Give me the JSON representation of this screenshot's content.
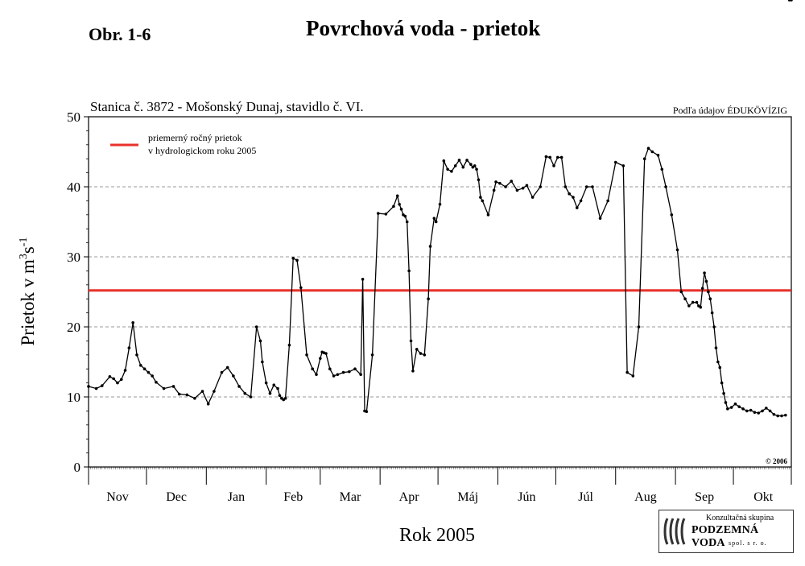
{
  "figure_label": "Obr. 1-6",
  "figure_title": "Povrchová voda - prietok",
  "chart_data": {
    "type": "line",
    "title": "Stanica č. 3872 - Mošonský Dunaj, stavidlo č. VI.",
    "source_note": "Podľa údajov ÉDUKÖVÍZIG",
    "copyright": "© 2006",
    "ylabel_main": "Prietok v m",
    "ylabel_sup1": "3",
    "ylabel_mid": "s",
    "ylabel_sup2": "-1",
    "xlabel": "Rok 2005",
    "ylim": [
      0,
      50
    ],
    "yticks": [
      0,
      10,
      20,
      30,
      40,
      50
    ],
    "ytick_labels": [
      "0",
      "10",
      "20",
      "30",
      "40",
      "50"
    ],
    "grid_y": [
      10,
      20,
      30,
      40
    ],
    "months": [
      "Nov",
      "Dec",
      "Jan",
      "Feb",
      "Mar",
      "Apr",
      "Máj",
      "Jún",
      "Júl",
      "Aug",
      "Sep",
      "Okt"
    ],
    "days_in_month": [
      30,
      31,
      31,
      28,
      31,
      30,
      31,
      30,
      31,
      31,
      30,
      31
    ],
    "legend": {
      "line1": "priemerný ročný prietok",
      "line2": "v hydrologickom roku 2005",
      "position": "top-left"
    },
    "mean_annual_flow": 25.2,
    "colors": {
      "series": "#000000",
      "mean_line": "#e8312a",
      "grid": "#777777"
    },
    "series": [
      {
        "day_of_year": [
          1,
          5,
          8,
          12,
          14,
          16,
          18,
          20,
          22,
          24,
          26,
          28,
          30,
          32,
          34,
          36,
          40,
          45,
          48,
          52,
          56,
          60,
          63,
          66,
          70,
          73,
          76,
          79,
          82,
          85,
          88,
          90,
          91,
          93,
          95,
          97,
          99,
          100,
          101,
          102,
          103,
          105,
          107,
          109,
          111,
          114,
          117,
          119,
          121,
          122,
          123,
          124,
          126,
          128,
          130,
          133,
          136,
          139,
          142,
          143,
          144,
          145,
          148,
          151,
          155,
          159,
          161,
          162,
          163,
          164,
          165,
          166,
          167,
          168,
          169,
          171,
          173,
          175,
          177,
          178,
          180,
          181,
          183,
          185,
          187,
          189,
          191,
          193,
          195,
          197,
          199,
          200,
          201,
          202,
          203,
          204,
          205,
          208,
          211,
          212,
          214,
          217,
          220,
          223,
          226,
          228,
          231,
          235,
          238,
          240,
          242,
          244,
          246,
          248,
          250,
          252,
          254,
          256,
          259,
          262,
          266,
          270,
          274,
          278,
          280,
          283,
          286,
          289,
          291,
          293,
          296,
          298,
          300,
          303,
          306,
          308,
          310,
          312,
          314,
          316,
          317,
          318,
          319,
          320,
          321,
          322,
          323,
          324,
          325,
          326,
          327,
          328,
          329,
          330,
          331,
          332,
          334,
          336,
          338,
          340,
          342,
          344,
          346,
          348,
          350,
          352,
          354,
          356,
          358,
          360,
          362,
          364,
          365
        ],
        "values": [
          11.5,
          11.2,
          11.6,
          12.9,
          12.6,
          12.0,
          12.5,
          13.8,
          17.0,
          20.6,
          16.0,
          14.5,
          14.0,
          13.5,
          13.0,
          12.1,
          11.2,
          11.5,
          10.4,
          10.3,
          9.8,
          10.8,
          9.0,
          10.8,
          13.5,
          14.2,
          13.0,
          11.5,
          10.5,
          10.0,
          20.0,
          18.0,
          15.0,
          12.0,
          10.5,
          11.7,
          11.2,
          10.2,
          9.8,
          9.6,
          9.8,
          17.4,
          29.8,
          29.5,
          25.6,
          16.0,
          14.0,
          13.2,
          15.5,
          16.4,
          16.3,
          16.2,
          14.0,
          13.0,
          13.2,
          13.5,
          13.6,
          14.0,
          13.2,
          26.8,
          8.0,
          7.9,
          16.0,
          36.2,
          36.1,
          37.2,
          38.7,
          37.5,
          36.8,
          36.0,
          35.8,
          35.0,
          28.0,
          18.0,
          13.7,
          16.8,
          16.2,
          16.0,
          24.0,
          31.5,
          35.5,
          35.0,
          37.5,
          43.7,
          42.5,
          42.2,
          43.0,
          43.8,
          42.8,
          43.8,
          43.2,
          42.8,
          43.0,
          42.5,
          41.0,
          38.5,
          38.0,
          36.0,
          39.5,
          40.7,
          40.5,
          40.0,
          40.8,
          39.5,
          39.8,
          40.2,
          38.5,
          40.0,
          44.3,
          44.2,
          43.0,
          44.2,
          44.2,
          40.0,
          39.0,
          38.5,
          37.0,
          38.0,
          40.0,
          40.0,
          35.5,
          38.0,
          43.5,
          43.0,
          13.5,
          13.0,
          20.0,
          44.0,
          45.5,
          45.0,
          44.5,
          42.5,
          40.0,
          36.0,
          31.0,
          25.0,
          24.0,
          23.0,
          23.5,
          23.5,
          23.0,
          22.8,
          25.5,
          27.7,
          26.5,
          25.0,
          24.0,
          22.0,
          20.0,
          17.0,
          15.0,
          14.2,
          12.0,
          10.5,
          9.2,
          8.3,
          8.5,
          9.0,
          8.6,
          8.3,
          8.0,
          8.1,
          7.8,
          7.7,
          8.0,
          8.4,
          8.0,
          7.5,
          7.3,
          7.3,
          7.4
        ]
      }
    ]
  },
  "logo": {
    "top": "Konzultačná skupina",
    "main": "PODZEMNÁ VODA",
    "bottom": "spol. s r. o."
  }
}
